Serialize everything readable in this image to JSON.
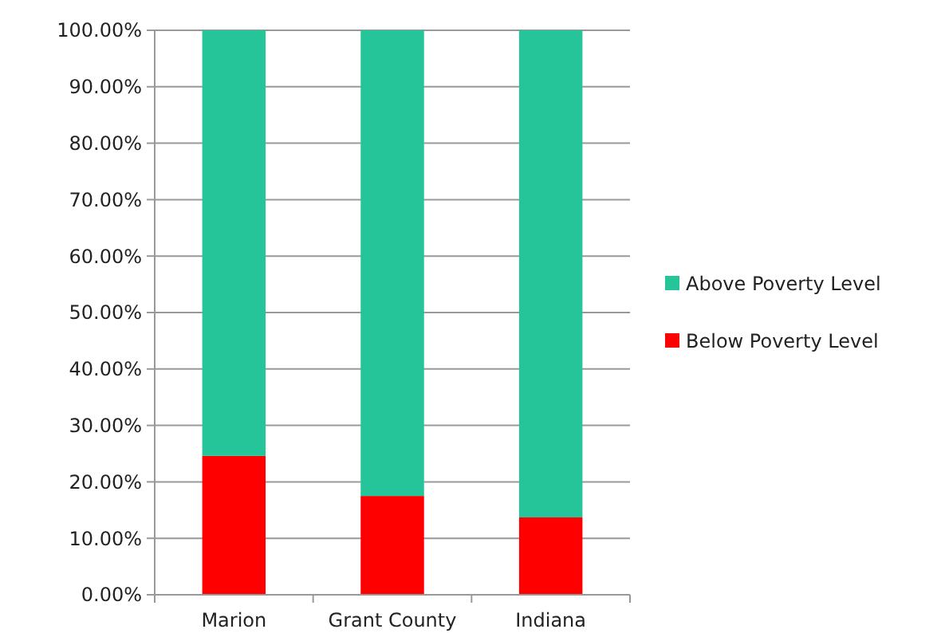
{
  "chart_data": {
    "type": "bar",
    "stacked": true,
    "categories": [
      "Marion",
      "Grant County",
      "Indiana"
    ],
    "series": [
      {
        "name": "Below Poverty Level",
        "color": "#ff0000",
        "values": [
          24.6,
          17.5,
          13.7
        ]
      },
      {
        "name": "Above Poverty Level",
        "color": "#26c499",
        "values": [
          75.4,
          82.5,
          86.3
        ]
      }
    ],
    "ylim": [
      0,
      100
    ],
    "yticks": [
      {
        "value": 0,
        "label": "0.00%"
      },
      {
        "value": 10,
        "label": "10.00%"
      },
      {
        "value": 20,
        "label": "20.00%"
      },
      {
        "value": 30,
        "label": "30.00%"
      },
      {
        "value": 40,
        "label": "40.00%"
      },
      {
        "value": 50,
        "label": "50.00%"
      },
      {
        "value": 60,
        "label": "60.00%"
      },
      {
        "value": 70,
        "label": "70.00%"
      },
      {
        "value": 80,
        "label": "80.00%"
      },
      {
        "value": 90,
        "label": "90.00%"
      },
      {
        "value": 100,
        "label": "100.00%"
      }
    ],
    "grid": "y",
    "legend": "right"
  }
}
